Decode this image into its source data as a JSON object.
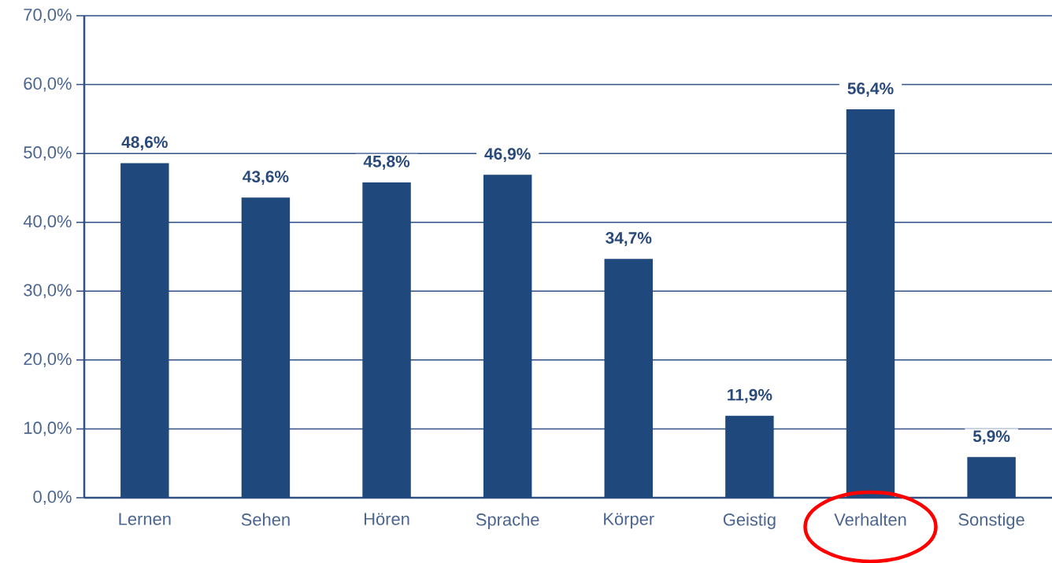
{
  "chart_data": {
    "type": "bar",
    "categories": [
      "Lernen",
      "Sehen",
      "Hören",
      "Sprache",
      "Körper",
      "Geistig",
      "Verhalten",
      "Sonstige"
    ],
    "values": [
      48.6,
      43.6,
      45.8,
      46.9,
      34.7,
      11.9,
      56.4,
      5.9
    ],
    "value_labels": [
      "48,6%",
      "43,6%",
      "45,8%",
      "46,9%",
      "34,7%",
      "11,9%",
      "56,4%",
      "5,9%"
    ],
    "color": "#1f497d",
    "ylim": [
      0,
      70
    ],
    "yticks": [
      {
        "value": 0,
        "label": "0,0%"
      },
      {
        "value": 10,
        "label": "10,0%"
      },
      {
        "value": 20,
        "label": "20,0%"
      },
      {
        "value": 30,
        "label": "30,0%"
      },
      {
        "value": 40,
        "label": "40,0%"
      },
      {
        "value": 50,
        "label": "50,0%"
      },
      {
        "value": 60,
        "label": "60,0%"
      },
      {
        "value": 70,
        "label": "70,0%"
      }
    ],
    "grid": "y"
  }
}
